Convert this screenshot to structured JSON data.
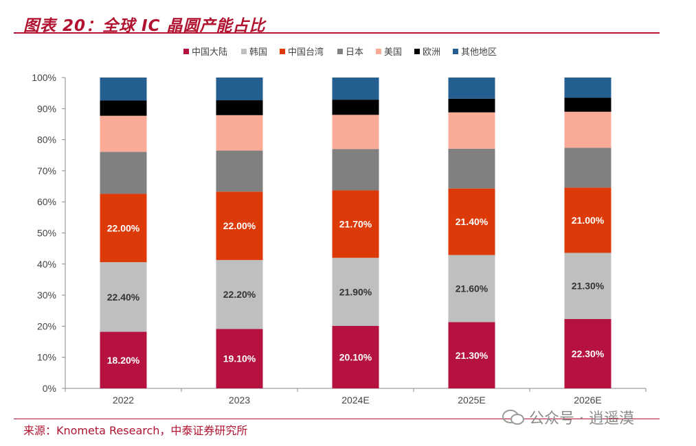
{
  "title": "图表 20：全球 IC 晶圆产能占比",
  "source": "来源：Knometa Research，中泰证券研究所",
  "watermark": "公众号 · 逍遥漠",
  "chart_data": {
    "type": "bar",
    "stacked": true,
    "percent_stacked": true,
    "categories": [
      "2022",
      "2023",
      "2024E",
      "2025E",
      "2026E"
    ],
    "ylim": [
      0,
      100
    ],
    "yticks": [
      "0%",
      "10%",
      "20%",
      "30%",
      "40%",
      "50%",
      "60%",
      "70%",
      "80%",
      "90%",
      "100%"
    ],
    "grid": false,
    "legend_position": "top",
    "series": [
      {
        "name": "中国大陆",
        "color": "#B5123F",
        "values": [
          18.2,
          19.1,
          20.1,
          21.3,
          22.3
        ],
        "labels": [
          "18.20%",
          "19.10%",
          "20.10%",
          "21.30%",
          "22.30%"
        ],
        "label_color": "#ffffff"
      },
      {
        "name": "韩国",
        "color": "#BFBFBF",
        "values": [
          22.4,
          22.2,
          21.9,
          21.6,
          21.3
        ],
        "labels": [
          "22.40%",
          "22.20%",
          "21.90%",
          "21.60%",
          "21.30%"
        ],
        "label_color": "#333333"
      },
      {
        "name": "中国台湾",
        "color": "#DC3A08",
        "values": [
          22.0,
          22.0,
          21.7,
          21.4,
          21.0
        ],
        "labels": [
          "22.00%",
          "22.00%",
          "21.70%",
          "21.40%",
          "21.00%"
        ],
        "label_color": "#ffffff"
      },
      {
        "name": "日本",
        "color": "#808080",
        "values": [
          13.5,
          13.2,
          13.3,
          12.8,
          12.8
        ]
      },
      {
        "name": "美国",
        "color": "#F9AB98",
        "values": [
          11.6,
          11.4,
          11.0,
          11.7,
          11.6
        ]
      },
      {
        "name": "欧洲",
        "color": "#000000",
        "values": [
          4.9,
          4.8,
          4.9,
          4.4,
          4.5
        ]
      },
      {
        "name": "其他地区",
        "color": "#255E91",
        "values": [
          7.4,
          7.3,
          7.1,
          6.8,
          6.5
        ]
      }
    ]
  }
}
